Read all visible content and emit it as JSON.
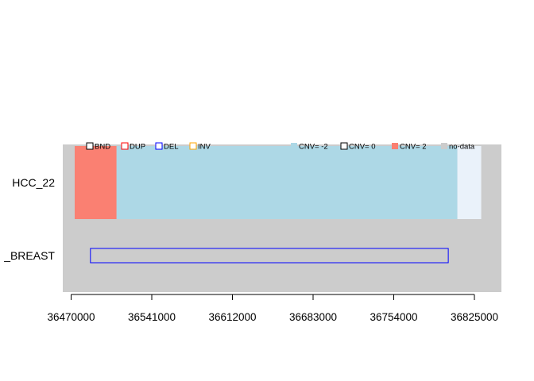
{
  "chart_data": {
    "type": "track",
    "xlim": [
      36457000,
      36831000
    ],
    "x_ticks": [
      "36470000",
      "36541000",
      "36612000",
      "36683000",
      "36754000",
      "36825000"
    ],
    "x_tick_values": [
      36470000,
      36541000,
      36612000,
      36683000,
      36754000,
      36825000
    ],
    "rows": [
      "HCC_22",
      "_BREAST"
    ],
    "cnv_segments": [
      {
        "row": 0,
        "start": 36460000,
        "end": 36510000,
        "state": "CNV= 2",
        "color": "#fa8072"
      },
      {
        "row": 0,
        "start": 36510000,
        "end": 36810000,
        "state": "CNV= -2",
        "color": "#add8e6"
      },
      {
        "row": 0,
        "start": 36810000,
        "end": 36831000,
        "state": "no-data",
        "color": "#eaf2fa"
      }
    ],
    "sv_events": [
      {
        "row": 1,
        "type": "DEL",
        "start": 36487000,
        "end": 36802000,
        "color": "#0000ff"
      }
    ],
    "legend_sv": [
      {
        "label": "BND",
        "color": "#000000"
      },
      {
        "label": "DUP",
        "color": "#ff0000"
      },
      {
        "label": "DEL",
        "color": "#0000ff"
      },
      {
        "label": "INV",
        "color": "#ffa500"
      }
    ],
    "legend_cnv": [
      {
        "label": "CNV= -2",
        "color": "#add8e6"
      },
      {
        "label": "CNV= 0",
        "color": "#ffffff"
      },
      {
        "label": "CNV= 2",
        "color": "#fa8072"
      },
      {
        "label": "no-data",
        "color": "#cccccc"
      }
    ],
    "background_color": "#cccccc"
  }
}
